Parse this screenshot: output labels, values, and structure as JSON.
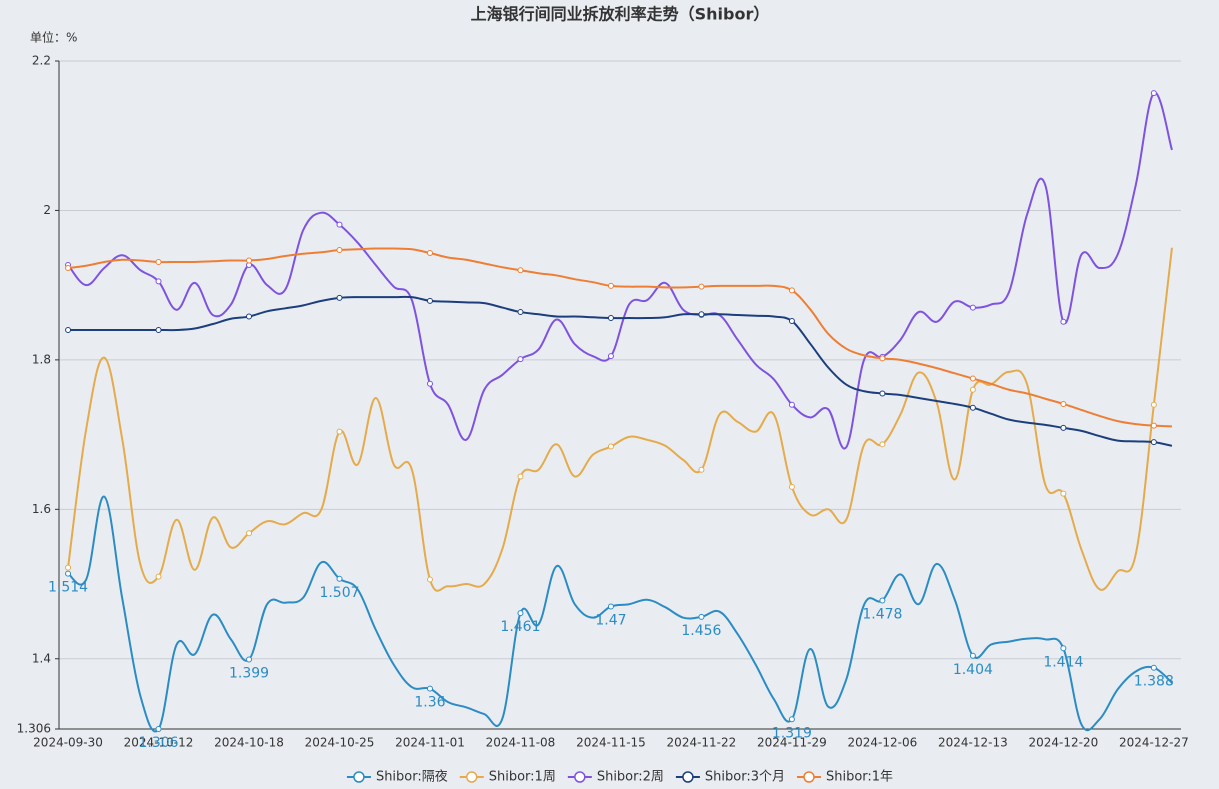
{
  "chart_data": {
    "type": "line",
    "title": "上海银行间同业拆放利率走势（Shibor）",
    "y_label": "单位：%",
    "categories": [
      "2024-09-30",
      null,
      null,
      null,
      null,
      "2024-10-12",
      null,
      null,
      null,
      null,
      "2024-10-18",
      null,
      null,
      null,
      null,
      "2024-10-25",
      null,
      null,
      null,
      null,
      "2024-11-01",
      null,
      null,
      null,
      null,
      "2024-11-08",
      null,
      null,
      null,
      null,
      "2024-11-15",
      null,
      null,
      null,
      null,
      "2024-11-22",
      null,
      null,
      null,
      null,
      "2024-11-29",
      null,
      null,
      null,
      null,
      "2024-12-06",
      null,
      null,
      null,
      null,
      "2024-12-13",
      null,
      null,
      null,
      null,
      "2024-12-20",
      null,
      null,
      null,
      null,
      "2024-12-27",
      null
    ],
    "ylim": [
      1.306,
      2.2
    ],
    "yticks": [
      1.306,
      1.4,
      1.6,
      1.8,
      2,
      2.2
    ],
    "grid": true,
    "legend": "bottom",
    "series": [
      {
        "name": "Shibor:隔夜",
        "color": "#2b8cc4",
        "data_labels": true,
        "values": [
          1.514,
          1.506,
          1.617,
          1.48,
          1.35,
          1.306,
          1.419,
          1.406,
          1.459,
          1.426,
          1.399,
          1.473,
          1.475,
          1.482,
          1.529,
          1.507,
          1.493,
          1.439,
          1.392,
          1.362,
          1.36,
          1.342,
          1.335,
          1.326,
          1.32,
          1.461,
          1.446,
          1.524,
          1.473,
          1.455,
          1.47,
          1.473,
          1.479,
          1.469,
          1.455,
          1.456,
          1.463,
          1.433,
          1.392,
          1.346,
          1.319,
          1.413,
          1.336,
          1.372,
          1.473,
          1.478,
          1.513,
          1.473,
          1.527,
          1.479,
          1.404,
          1.419,
          1.423,
          1.427,
          1.426,
          1.414,
          1.312,
          1.319,
          1.359,
          1.383,
          1.388,
          1.368
        ]
      },
      {
        "name": "Shibor:1周",
        "color": "#e5ab4b",
        "values": [
          1.522,
          1.707,
          1.803,
          1.693,
          1.526,
          1.51,
          1.586,
          1.519,
          1.589,
          1.549,
          1.568,
          1.584,
          1.58,
          1.595,
          1.6,
          1.704,
          1.66,
          1.749,
          1.66,
          1.653,
          1.506,
          1.497,
          1.5,
          1.5,
          1.547,
          1.644,
          1.653,
          1.687,
          1.644,
          1.673,
          1.684,
          1.697,
          1.693,
          1.685,
          1.666,
          1.653,
          1.727,
          1.717,
          1.704,
          1.727,
          1.63,
          1.593,
          1.6,
          1.586,
          1.687,
          1.687,
          1.727,
          1.783,
          1.743,
          1.64,
          1.76,
          1.767,
          1.784,
          1.767,
          1.633,
          1.621,
          1.546,
          1.493,
          1.517,
          1.54,
          1.74,
          1.95
        ]
      },
      {
        "name": "Shibor:2周",
        "color": "#7f52e0",
        "values": [
          1.927,
          1.9,
          1.923,
          1.94,
          1.92,
          1.905,
          1.867,
          1.903,
          1.86,
          1.874,
          1.927,
          1.9,
          1.894,
          1.974,
          1.997,
          1.981,
          1.957,
          1.927,
          1.898,
          1.88,
          1.768,
          1.74,
          1.693,
          1.76,
          1.78,
          1.801,
          1.814,
          1.854,
          1.821,
          1.805,
          1.805,
          1.874,
          1.88,
          1.903,
          1.867,
          1.86,
          1.86,
          1.827,
          1.794,
          1.774,
          1.74,
          1.723,
          1.734,
          1.683,
          1.801,
          1.804,
          1.827,
          1.864,
          1.851,
          1.878,
          1.87,
          1.874,
          1.891,
          1.995,
          2.034,
          1.851,
          1.941,
          1.923,
          1.941,
          2.034,
          2.157,
          2.081
        ]
      },
      {
        "name": "Shibor:3个月",
        "color": "#1c3f7c",
        "values": [
          1.84,
          1.84,
          1.84,
          1.84,
          1.84,
          1.84,
          1.84,
          1.842,
          1.848,
          1.855,
          1.858,
          1.865,
          1.869,
          1.873,
          1.879,
          1.883,
          1.884,
          1.884,
          1.884,
          1.884,
          1.879,
          1.878,
          1.877,
          1.876,
          1.87,
          1.864,
          1.861,
          1.858,
          1.858,
          1.857,
          1.856,
          1.856,
          1.856,
          1.857,
          1.861,
          1.861,
          1.861,
          1.86,
          1.859,
          1.858,
          1.852,
          1.822,
          1.79,
          1.767,
          1.758,
          1.755,
          1.753,
          1.749,
          1.745,
          1.741,
          1.736,
          1.728,
          1.72,
          1.716,
          1.713,
          1.709,
          1.705,
          1.698,
          1.692,
          1.691,
          1.69,
          1.685
        ]
      },
      {
        "name": "Shibor:1年",
        "color": "#ee7e34",
        "values": [
          1.923,
          1.926,
          1.931,
          1.934,
          1.933,
          1.931,
          1.931,
          1.931,
          1.932,
          1.933,
          1.933,
          1.935,
          1.939,
          1.942,
          1.944,
          1.947,
          1.948,
          1.949,
          1.949,
          1.948,
          1.943,
          1.937,
          1.934,
          1.929,
          1.924,
          1.92,
          1.916,
          1.913,
          1.908,
          1.904,
          1.899,
          1.898,
          1.898,
          1.897,
          1.897,
          1.898,
          1.899,
          1.899,
          1.899,
          1.899,
          1.893,
          1.868,
          1.835,
          1.815,
          1.806,
          1.802,
          1.8,
          1.795,
          1.789,
          1.782,
          1.775,
          1.768,
          1.76,
          1.755,
          1.748,
          1.741,
          1.733,
          1.725,
          1.718,
          1.714,
          1.712,
          1.711
        ]
      }
    ]
  }
}
